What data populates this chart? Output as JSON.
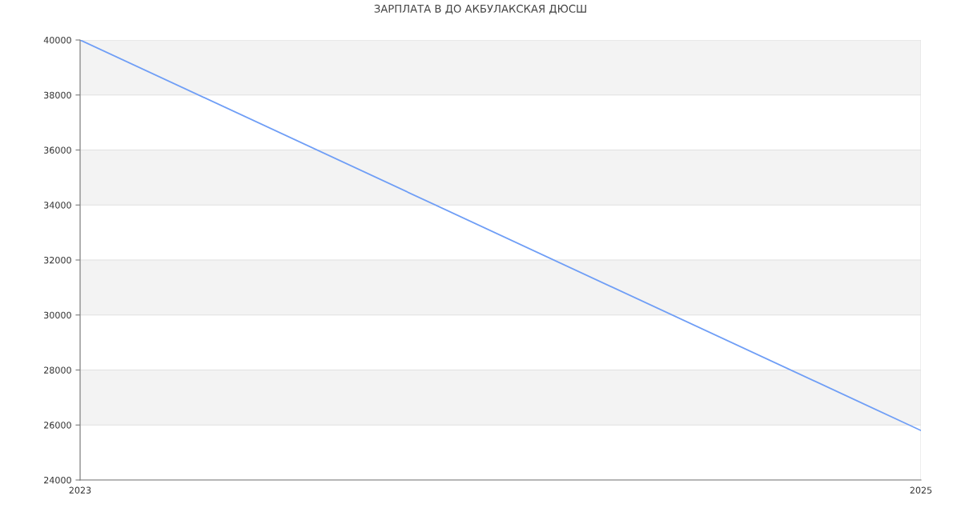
{
  "chart_data": {
    "type": "line",
    "title": "ЗАРПЛАТА В ДО АКБУЛАКСКАЯ ДЮСШ",
    "x": [
      2023,
      2025
    ],
    "series": [
      {
        "color": "#6f9ef6",
        "values": [
          40000,
          25800
        ]
      }
    ],
    "xlim": [
      2023,
      2025
    ],
    "xticks": [
      2023,
      2025
    ],
    "ylim": [
      24000,
      40000
    ],
    "yticks": [
      24000,
      26000,
      28000,
      30000,
      32000,
      34000,
      36000,
      38000,
      40000
    ],
    "bands": [
      {
        "axis": "y",
        "from": 26000,
        "to": 28000,
        "color": "#f3f3f3"
      },
      {
        "axis": "y",
        "from": 30000,
        "to": 32000,
        "color": "#f3f3f3"
      },
      {
        "axis": "y",
        "from": 34000,
        "to": 36000,
        "color": "#f3f3f3"
      },
      {
        "axis": "y",
        "from": 38000,
        "to": 40000,
        "color": "#f3f3f3"
      }
    ],
    "grid": true,
    "marker": "none",
    "line_style": "solid"
  }
}
